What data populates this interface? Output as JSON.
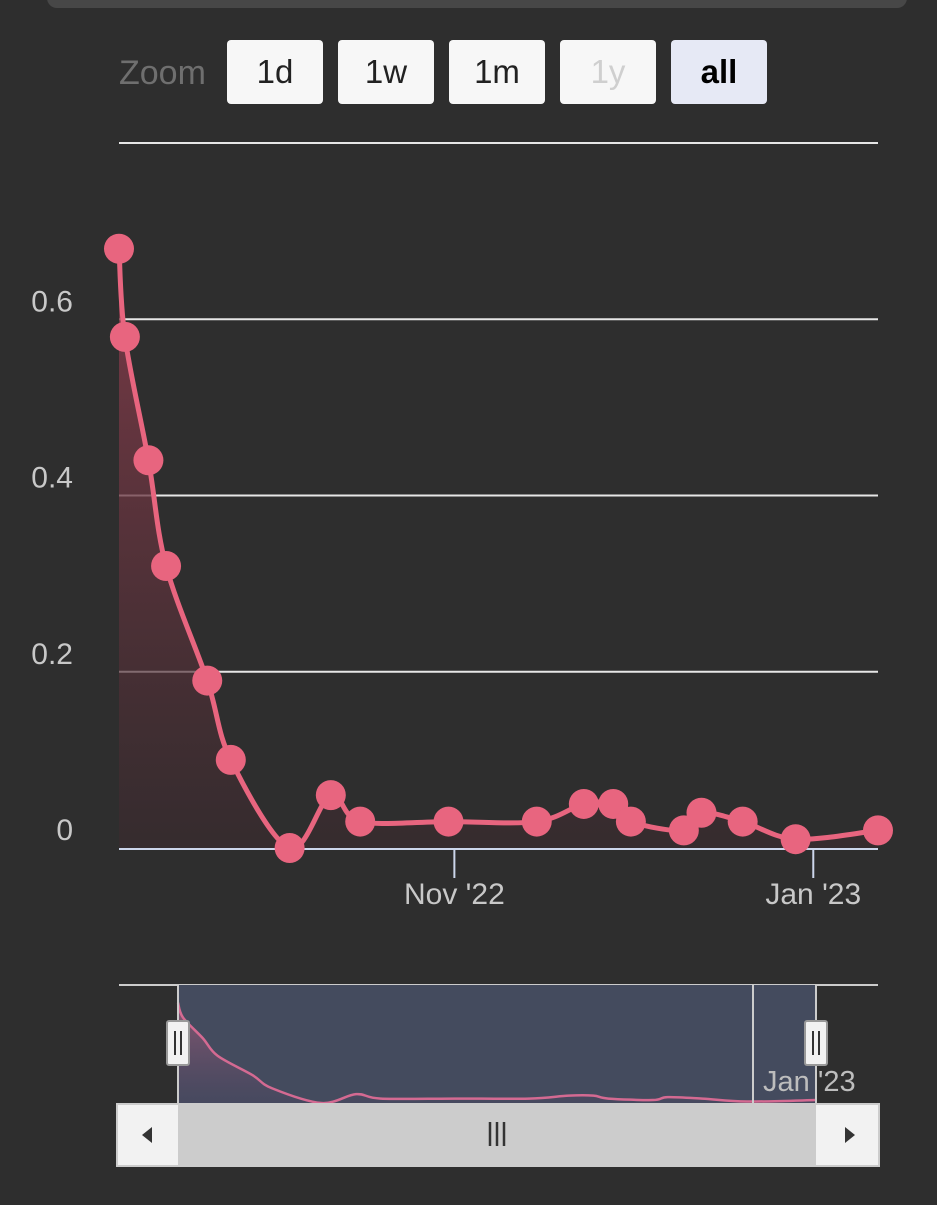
{
  "range_selector": {
    "label": "Zoom",
    "buttons": [
      {
        "label": "1d",
        "state": "normal"
      },
      {
        "label": "1w",
        "state": "normal"
      },
      {
        "label": "1m",
        "state": "normal"
      },
      {
        "label": "1y",
        "state": "disabled"
      },
      {
        "label": "all",
        "state": "selected"
      }
    ]
  },
  "chart_data": {
    "type": "area",
    "title": "",
    "xlabel": "",
    "ylabel": "",
    "x_range": [
      "2022-09-05",
      "2023-01-12"
    ],
    "ylim": [
      0,
      0.8
    ],
    "y_ticks": [
      "0",
      "0.2",
      "0.4",
      "0.6"
    ],
    "y_tick_values": [
      0,
      0.2,
      0.4,
      0.6
    ],
    "x_ticks": [
      {
        "label": "Nov '22",
        "date": "2022-11-01"
      },
      {
        "label": "Jan '23",
        "date": "2023-01-01"
      }
    ],
    "grid": true,
    "series": [
      {
        "color": "#e8657f",
        "points": [
          {
            "x": "2022-09-05",
            "y": 0.68
          },
          {
            "x": "2022-09-06",
            "y": 0.58
          },
          {
            "x": "2022-09-10",
            "y": 0.44
          },
          {
            "x": "2022-09-13",
            "y": 0.32
          },
          {
            "x": "2022-09-20",
            "y": 0.19
          },
          {
            "x": "2022-09-24",
            "y": 0.1
          },
          {
            "x": "2022-10-04",
            "y": 0.0
          },
          {
            "x": "2022-10-11",
            "y": 0.06
          },
          {
            "x": "2022-10-16",
            "y": 0.03
          },
          {
            "x": "2022-11-00",
            "y": 0.03
          },
          {
            "x": "2022-11-15",
            "y": 0.03
          },
          {
            "x": "2022-11-23",
            "y": 0.05
          },
          {
            "x": "2022-11-28",
            "y": 0.05
          },
          {
            "x": "2022-12-01",
            "y": 0.03
          },
          {
            "x": "2022-12-10",
            "y": 0.02
          },
          {
            "x": "2022-12-13",
            "y": 0.04
          },
          {
            "x": "2022-12-20",
            "y": 0.03
          },
          {
            "x": "2022-12-29",
            "y": 0.01
          },
          {
            "x": "2023-01-12",
            "y": 0.02
          }
        ]
      }
    ],
    "navigator": {
      "x_ticks": [
        {
          "label": "Jan '23",
          "date": "2023-01-01"
        }
      ]
    }
  }
}
